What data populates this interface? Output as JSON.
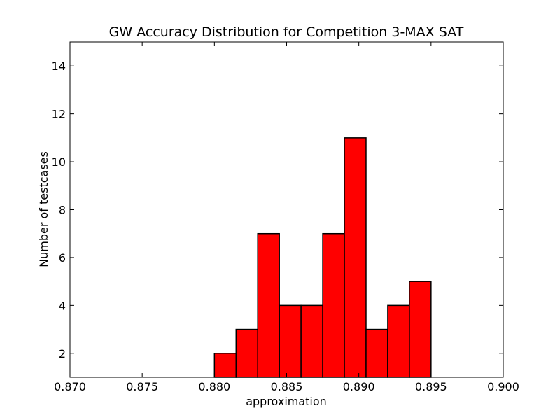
{
  "chart_data": {
    "type": "bar",
    "title": "GW Accuracy Distribution for Competition 3-MAX SAT",
    "xlabel": "approximation",
    "ylabel": "Number of testcases",
    "xlim": [
      0.87,
      0.9
    ],
    "ylim": [
      1,
      15
    ],
    "xticks": [
      "0.870",
      "0.875",
      "0.880",
      "0.885",
      "0.890",
      "0.895",
      "0.900"
    ],
    "yticks": [
      2,
      4,
      6,
      8,
      10,
      12,
      14
    ],
    "bin_edges": [
      0.88,
      0.8815,
      0.883,
      0.8845,
      0.886,
      0.8875,
      0.889,
      0.8905,
      0.892,
      0.8935,
      0.895
    ],
    "values": [
      2,
      3,
      7,
      4,
      4,
      7,
      11,
      3,
      4,
      5
    ],
    "bar_color": "#ff0000",
    "edge_color": "#000000",
    "grid": false,
    "legend": "none"
  }
}
